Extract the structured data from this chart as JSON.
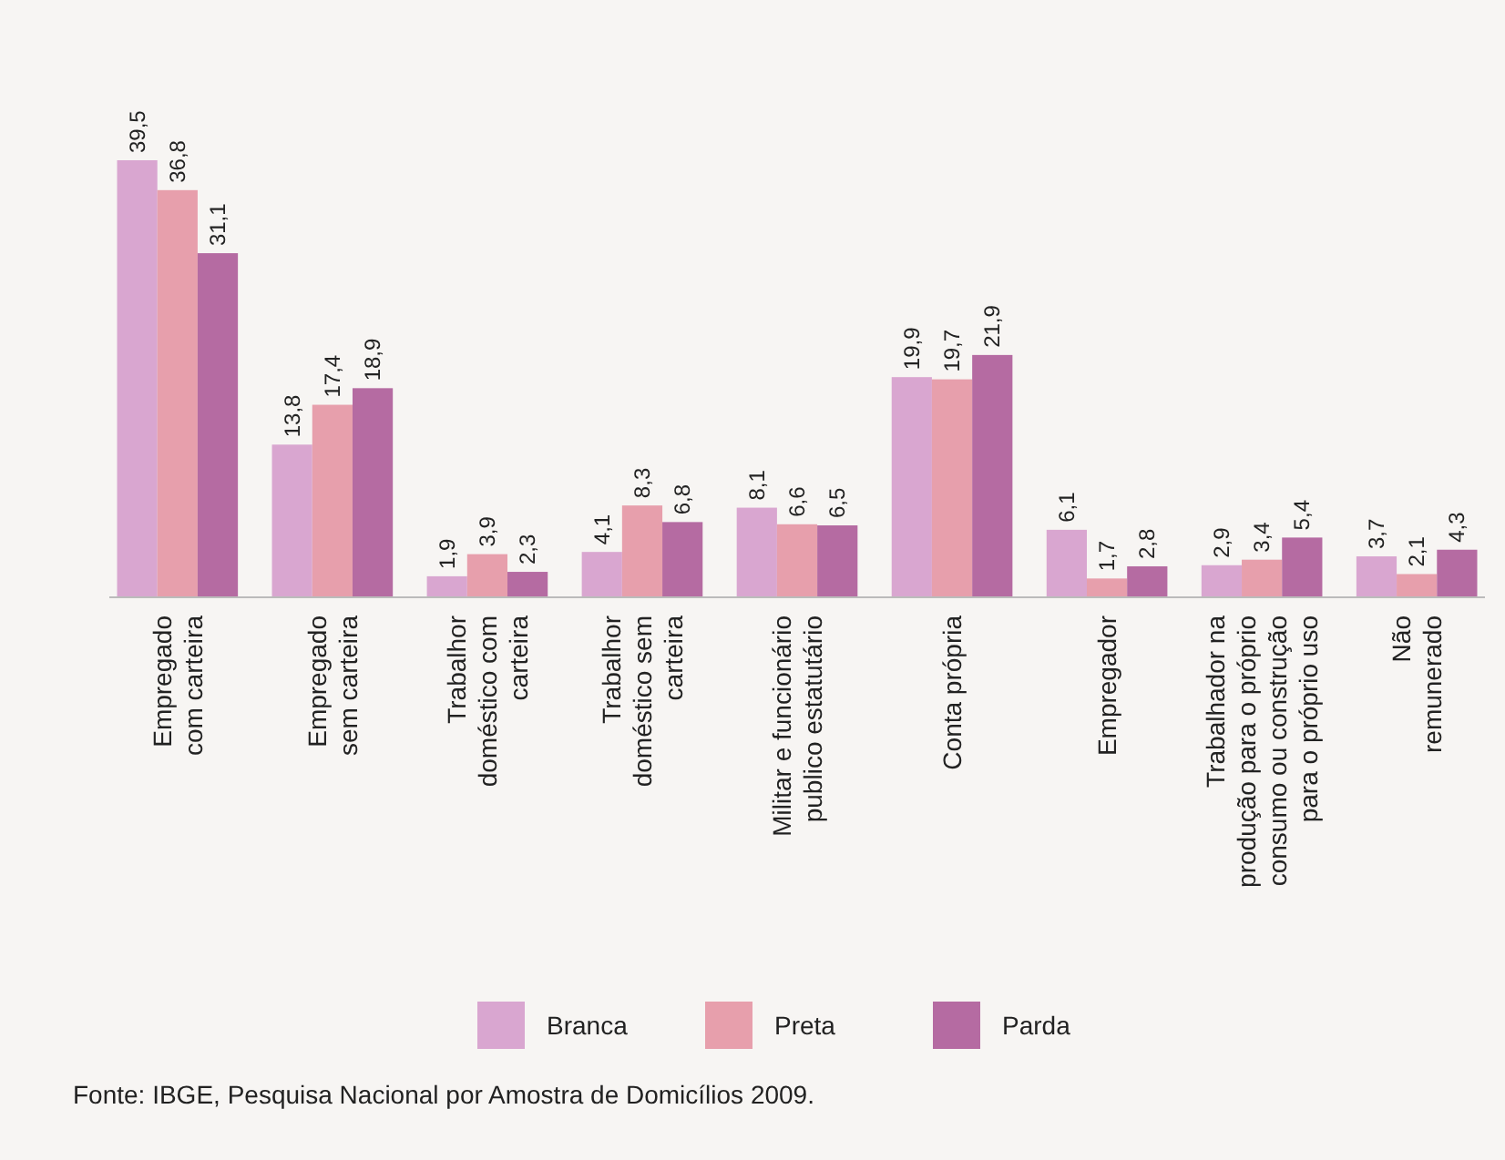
{
  "chart_data": {
    "type": "bar",
    "categories": [
      "Empregado\ncom carteira",
      "Empregado\nsem carteira",
      "Trabalhor\ndoméstico com\ncarteira",
      "Trabalhor\ndoméstico sem\ncarteira",
      "Militar e funcionário\npublico estatutário",
      "Conta própria",
      "Empregador",
      "Trabalhador na\nprodução para o próprio\nconsumo ou construção\npara o próprio uso",
      "Não\nremunerado"
    ],
    "series": [
      {
        "name": "Branca",
        "color": "#d9a6d0",
        "values": [
          39.5,
          13.8,
          1.9,
          4.1,
          8.1,
          19.9,
          6.1,
          2.9,
          3.7
        ],
        "value_labels": [
          "39,5",
          "13,8",
          "1,9",
          "4,1",
          "8,1",
          "19,9",
          "6,1",
          "2,9",
          "3,7"
        ]
      },
      {
        "name": "Preta",
        "color": "#e79fac",
        "values": [
          36.8,
          17.4,
          3.9,
          8.3,
          6.6,
          19.7,
          1.7,
          3.4,
          2.1
        ],
        "value_labels": [
          "36,8",
          "17,4",
          "3,9",
          "8,3",
          "6,6",
          "19,7",
          "1,7",
          "3,4",
          "2,1"
        ]
      },
      {
        "name": "Parda",
        "color": "#b56ba2",
        "values": [
          31.1,
          18.9,
          2.3,
          6.8,
          6.5,
          21.9,
          2.8,
          5.4,
          4.3
        ],
        "value_labels": [
          "31,1",
          "18,9",
          "2,3",
          "6,8",
          "6,5",
          "21,9",
          "2,8",
          "5,4",
          "4,3"
        ]
      }
    ],
    "legend": "bottom",
    "grid": false,
    "annotations": [
      "Fonte: IBGE, Pesquisa Nacional por Amostra de Domicílios 2009."
    ]
  }
}
